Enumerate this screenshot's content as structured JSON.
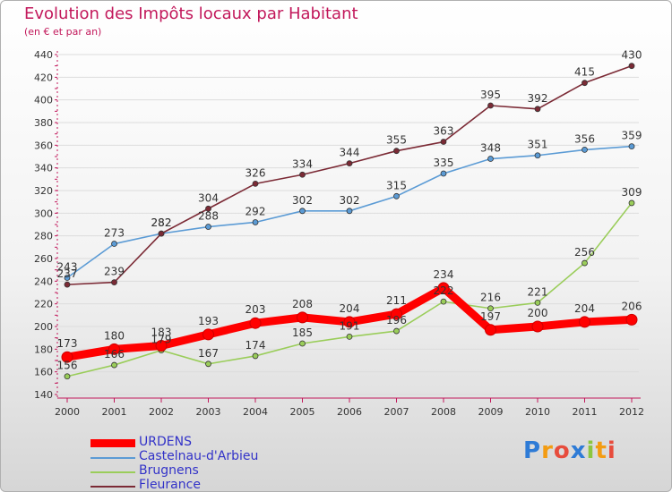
{
  "header": {
    "title": "Evolution des Impôts locaux par Habitant",
    "subtitle": "(en € et par an)"
  },
  "logo": {
    "text": "Proxiti"
  },
  "colors": {
    "title": "#c2185b",
    "axis": "#c2185b",
    "grid": "#dcdcdc",
    "legend_text": "#3232c8"
  },
  "chart_data": {
    "type": "line",
    "title": "Evolution des Impôts locaux par Habitant",
    "subtitle": "(en € et par an)",
    "xlabel": "",
    "ylabel": "",
    "x": [
      "2000",
      "2001",
      "2002",
      "2003",
      "2004",
      "2005",
      "2006",
      "2007",
      "2008",
      "2009",
      "2010",
      "2011",
      "2012"
    ],
    "ylim": [
      140,
      440
    ],
    "yticks": [
      140,
      160,
      180,
      200,
      220,
      240,
      260,
      280,
      300,
      320,
      340,
      360,
      380,
      400,
      420,
      440
    ],
    "grid": true,
    "legend_position": "bottom-left",
    "series": [
      {
        "name": "URDENS",
        "color": "#ff0000",
        "values": [
          173,
          180,
          183,
          193,
          203,
          208,
          204,
          211,
          234,
          197,
          200,
          204,
          206
        ]
      },
      {
        "name": "Castelnau-d'Arbieu",
        "color": "#5b9bd5",
        "values": [
          243,
          273,
          282,
          288,
          292,
          302,
          302,
          315,
          335,
          348,
          351,
          356,
          359
        ]
      },
      {
        "name": "Brugnens",
        "color": "#9acd5a",
        "values": [
          156,
          166,
          179,
          167,
          174,
          185,
          191,
          196,
          222,
          216,
          221,
          256,
          309
        ]
      },
      {
        "name": "Fleurance",
        "color": "#7b2a35",
        "values": [
          237,
          239,
          282,
          304,
          326,
          334,
          344,
          355,
          363,
          395,
          392,
          415,
          430
        ]
      }
    ]
  }
}
